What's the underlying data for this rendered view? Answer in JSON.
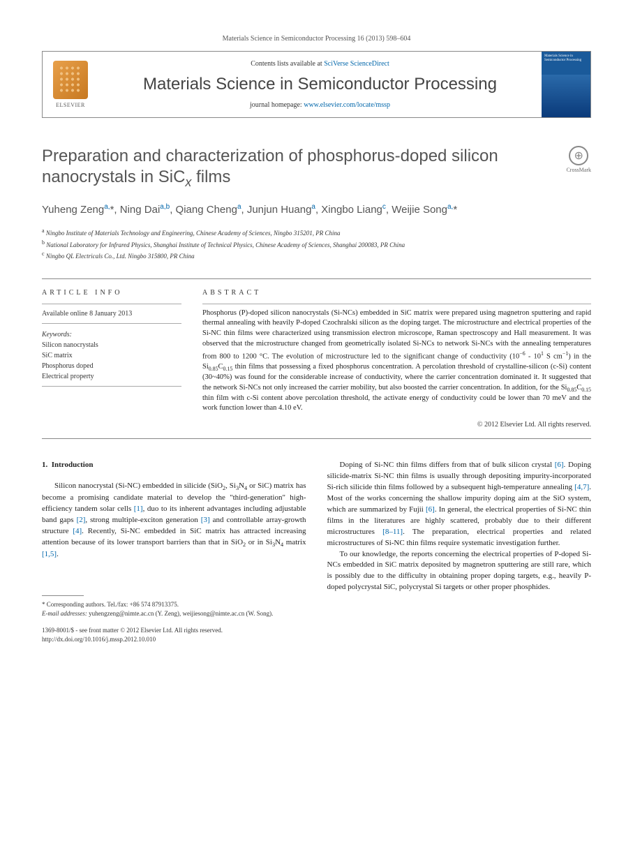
{
  "journal_ref": "Materials Science in Semiconductor Processing 16 (2013) 598–604",
  "header": {
    "publisher": "ELSEVIER",
    "contents_prefix": "Contents lists available at ",
    "contents_link": "SciVerse ScienceDirect",
    "journal_title": "Materials Science in Semiconductor Processing",
    "homepage_prefix": "journal homepage: ",
    "homepage_url": "www.elsevier.com/locate/mssp",
    "cover_title": "Materials Science in Semiconductor Processing"
  },
  "crossmark": "CrossMark",
  "title_html": "Preparation and characterization of phosphorus-doped silicon nanocrystals in SiC<sub><i>x</i></sub> films",
  "authors_html": "Yuheng Zeng<sup>a,</sup>*, Ning Dai<sup>a,b</sup>, Qiang Cheng<sup>a</sup>, Junjun Huang<sup>a</sup>, Xingbo Liang<sup>c</sup>, Weijie Song<sup>a,</sup>*",
  "affiliations": [
    {
      "sup": "a",
      "text": "Ningbo Institute of Materials Technology and Engineering, Chinese Academy of Sciences, Ningbo 315201, PR China"
    },
    {
      "sup": "b",
      "text": "National Laboratory for Infrared Physics, Shanghai Institute of Technical Physics, Chinese Academy of Sciences, Shanghai 200083, PR China"
    },
    {
      "sup": "c",
      "text": "Ningbo QL Electricals Co., Ltd. Ningbo 315800, PR China"
    }
  ],
  "article_info": {
    "heading": "ARTICLE INFO",
    "available": "Available online 8 January 2013",
    "keywords_label": "Keywords:",
    "keywords": [
      "Silicon nanocrystals",
      "SiC matrix",
      "Phosphorus doped",
      "Electrical property"
    ]
  },
  "abstract": {
    "heading": "ABSTRACT",
    "text_html": "Phosphorus (P)-doped silicon nanocrystals (Si-NCs) embedded in SiC matrix were prepared using magnetron sputtering and rapid thermal annealing with heavily P-doped Czochralski silicon as the doping target. The microstructure and electrical properties of the Si-NC thin films were characterized using transmission electron microscope, Raman spectroscopy and Hall measurement. It was observed that the microstructure changed from geometrically isolated Si-NCs to network Si-NCs with the annealing temperatures from 800 to 1200 °C. The evolution of microstructure led to the significant change of conductivity (10<sup class=\"exp\">−6</sup> - 10<sup class=\"exp\">1</sup> S cm<sup class=\"exp\">−1</sup>) in the Si<sub>0.85</sub>C<sub>0.15</sub> thin films that possessing a fixed phosphorus concentration. A percolation threshold of crystalline-silicon (c-Si) content (30~40%) was found for the considerable increase of conductivity, where the carrier concentration dominated it. It suggested that the network Si-NCs not only increased the carrier mobility, but also boosted the carrier concentration. In addition, for the Si<sub>0.85</sub>C<sub>0.15</sub> thin film with c-Si content above percolation threshold, the activate energy of conductivity could be lower than 70 meV and the work function lower than 4.10 eV.",
    "copyright": "© 2012 Elsevier Ltd. All rights reserved."
  },
  "body": {
    "section_number": "1.",
    "section_title": "Introduction",
    "col1_p1_html": "Silicon nanocrystal (Si-NC) embedded in silicide (SiO<sub>2</sub>, Si<sub>3</sub>N<sub>4</sub> or SiC) matrix has become a promising candidate material to develop the \"third-generation\" high-efficiency tandem solar cells <span class=\"ref\">[1]</span>, duo to its inherent advantages including adjustable band gaps <span class=\"ref\">[2]</span>, strong multiple-exciton generation <span class=\"ref\">[3]</span> and controllable array-growth structure <span class=\"ref\">[4]</span>. Recently, Si-NC embedded in SiC matrix has attracted increasing attention because of its lower transport barriers than that in SiO<sub>2</sub> or in Si<sub>3</sub>N<sub>4</sub> matrix <span class=\"ref\">[1,5]</span>.",
    "col2_p1_html": "Doping of Si-NC thin films differs from that of bulk silicon crystal <span class=\"ref\">[6]</span>. Doping silicide-matrix Si-NC thin films is usually through depositing impurity-incorporated Si-rich silicide thin films followed by a subsequent high-temperature annealing <span class=\"ref\">[4,7]</span>. Most of the works concerning the shallow impurity doping aim at the SiO system, which are summarized by Fujii <span class=\"ref\">[6]</span>. In general, the electrical properties of Si-NC thin films in the literatures are highly scattered, probably due to their different microstructures <span class=\"ref\">[8–11]</span>. The preparation, electrical properties and related microstructures of Si-NC thin films require systematic investigation further.",
    "col2_p2_html": "To our knowledge, the reports concerning the electrical properties of P-doped Si-NCs embedded in SiC matrix deposited by magnetron sputtering are still rare, which is possibly due to the difficulty in obtaining proper doping targets, e.g., heavily P-doped polycrystal SiC, polycrystal Si targets or other proper phosphides."
  },
  "footnotes": {
    "corr": "* Corresponding authors. Tel./fax: +86 574 87913375.",
    "email_label": "E-mail addresses:",
    "emails_html": "yuhengzeng@nimte.ac.cn (Y. Zeng), weijiesong@nimte.ac.cn (W. Song)."
  },
  "doi": {
    "line1": "1369-8001/$ - see front matter © 2012 Elsevier Ltd. All rights reserved.",
    "line2": "http://dx.doi.org/10.1016/j.mssp.2012.10.010"
  },
  "colors": {
    "link": "#0066aa",
    "text": "#222222",
    "muted": "#555555",
    "border": "#888888",
    "cover_bg": "#0a4a8a"
  }
}
